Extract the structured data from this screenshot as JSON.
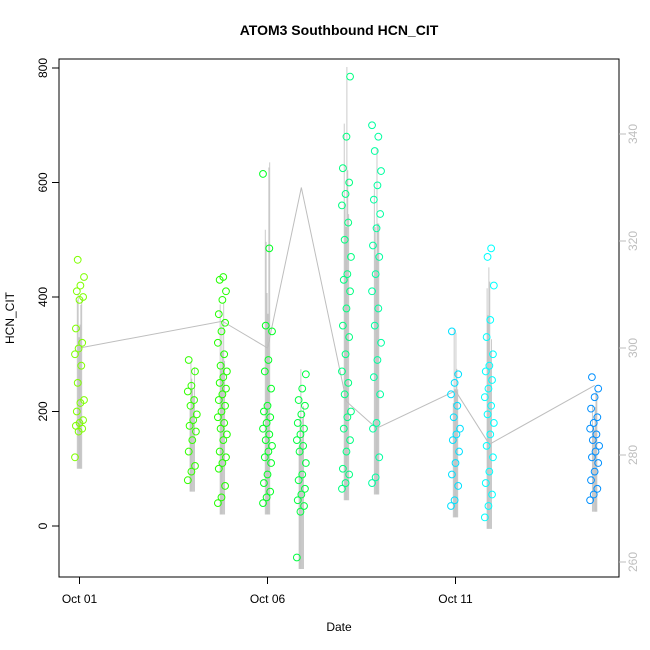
{
  "chart_data": {
    "type": "scatter",
    "title": "ATOM3 Southbound HCN_CIT",
    "xlabel": "Date",
    "ylabel": "HCN_CIT",
    "x_ticks": [
      "Oct 01",
      "Oct 06",
      "Oct 11"
    ],
    "y_ticks": [
      0,
      200,
      400,
      600,
      800
    ],
    "y_right_ticks": [
      260,
      280,
      300,
      320,
      340
    ],
    "ylim": [
      -85,
      815
    ],
    "y_right_lim": [
      258,
      350
    ],
    "colors": {
      "early": "#80ff00",
      "mid": "#00ff40",
      "late": "#00ffff",
      "last": "#0080ff",
      "line": "#bebebe"
    },
    "series": [
      {
        "day": 1.0,
        "color": "#7fff00",
        "values": [
          120,
          165,
          170,
          175,
          180,
          185,
          200,
          215,
          220,
          250,
          280,
          300,
          310,
          320,
          345,
          395,
          400,
          410,
          420,
          435,
          465
        ]
      },
      {
        "day": 4.0,
        "color": "#33ff00",
        "values": [
          80,
          95,
          105,
          130,
          150,
          165,
          175,
          185,
          195,
          210,
          220,
          235,
          245,
          270,
          290
        ]
      },
      {
        "day": 4.8,
        "color": "#22ff00",
        "values": [
          40,
          50,
          70,
          100,
          110,
          120,
          130,
          150,
          160,
          170,
          180,
          190,
          200,
          210,
          220,
          230,
          240,
          250,
          260,
          270,
          280,
          300,
          320,
          340,
          355,
          370,
          395,
          410,
          430,
          435
        ]
      },
      {
        "day": 6.0,
        "color": "#00ff22",
        "values": [
          40,
          50,
          60,
          75,
          90,
          110,
          120,
          130,
          140,
          150,
          160,
          170,
          180,
          190,
          200,
          210,
          240,
          270,
          290,
          340,
          350,
          485,
          615
        ]
      },
      {
        "day": 6.9,
        "color": "#00ff40",
        "values": [
          -55,
          25,
          35,
          45,
          55,
          65,
          80,
          90,
          110,
          130,
          140,
          150,
          160,
          170,
          180,
          195,
          210,
          220,
          240,
          265
        ]
      },
      {
        "day": 8.1,
        "color": "#00ff80",
        "values": [
          65,
          75,
          90,
          100,
          130,
          150,
          170,
          190,
          200,
          230,
          250,
          270,
          300,
          330,
          350,
          380,
          410,
          430,
          440,
          470,
          500,
          530,
          560,
          580,
          600,
          625,
          680,
          785
        ]
      },
      {
        "day": 8.9,
        "color": "#00ffa0",
        "values": [
          75,
          85,
          120,
          170,
          180,
          230,
          260,
          290,
          320,
          350,
          380,
          410,
          440,
          470,
          490,
          520,
          545,
          570,
          595,
          620,
          655,
          680,
          700
        ]
      },
      {
        "day": 11.0,
        "color": "#00e0ff",
        "values": [
          35,
          45,
          70,
          90,
          110,
          130,
          150,
          160,
          170,
          190,
          210,
          230,
          250,
          265,
          340
        ]
      },
      {
        "day": 11.9,
        "color": "#00ffff",
        "values": [
          15,
          35,
          55,
          75,
          95,
          120,
          140,
          160,
          180,
          195,
          210,
          225,
          240,
          255,
          270,
          280,
          300,
          330,
          360,
          420,
          470,
          485
        ]
      },
      {
        "day": 14.7,
        "color": "#0090ff",
        "values": [
          45,
          55,
          65,
          80,
          95,
          110,
          120,
          130,
          140,
          150,
          160,
          170,
          180,
          190,
          205,
          225,
          240,
          260
        ]
      }
    ]
  }
}
